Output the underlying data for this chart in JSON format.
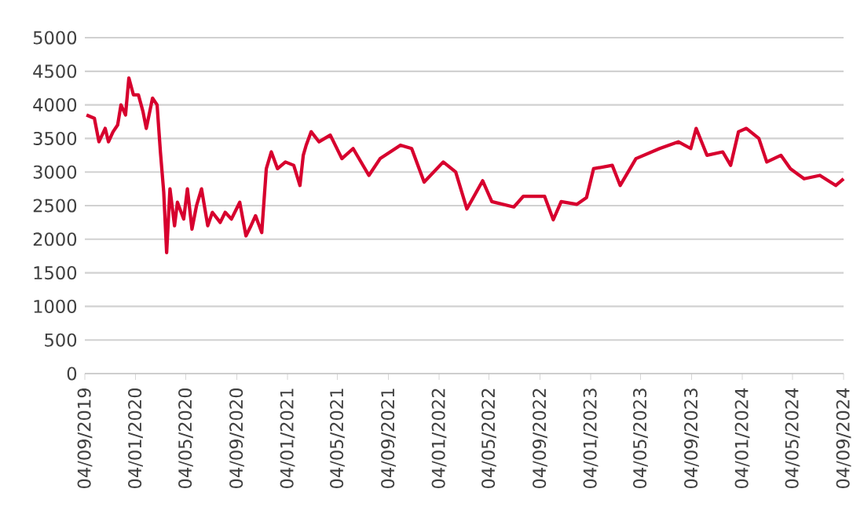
{
  "chart_data": {
    "type": "line",
    "x": [
      "2019-09-08",
      "2019-09-27",
      "2019-10-08",
      "2019-10-23",
      "2019-10-31",
      "2019-11-11",
      "2019-11-22",
      "2019-11-30",
      "2019-12-11",
      "2019-12-19",
      "2019-12-30",
      "2020-01-11",
      "2020-01-22",
      "2020-01-30",
      "2020-02-14",
      "2020-02-25",
      "2020-03-04",
      "2020-03-12",
      "2020-03-19",
      "2020-03-27",
      "2020-04-07",
      "2020-04-14",
      "2020-04-29",
      "2020-05-08",
      "2020-05-19",
      "2020-05-30",
      "2020-06-11",
      "2020-06-26",
      "2020-07-07",
      "2020-07-26",
      "2020-08-07",
      "2020-08-22",
      "2020-09-11",
      "2020-09-26",
      "2020-10-08",
      "2020-10-19",
      "2020-11-03",
      "2020-11-14",
      "2020-11-26",
      "2020-12-11",
      "2020-12-30",
      "2021-01-19",
      "2021-02-03",
      "2021-02-11",
      "2021-02-18",
      "2021-03-02",
      "2021-03-21",
      "2021-04-17",
      "2021-05-15",
      "2021-06-11",
      "2021-07-19",
      "2021-08-15",
      "2021-10-03",
      "2021-10-30",
      "2021-11-29",
      "2022-01-14",
      "2022-02-13",
      "2022-03-12",
      "2022-04-19",
      "2022-05-11",
      "2022-07-03",
      "2022-07-26",
      "2022-09-15",
      "2022-10-06",
      "2022-10-25",
      "2022-12-02",
      "2022-12-25",
      "2023-01-11",
      "2023-02-25",
      "2023-03-16",
      "2023-04-23",
      "2023-06-19",
      "2023-08-03",
      "2023-09-02",
      "2023-09-15",
      "2023-10-11",
      "2023-11-18",
      "2023-12-07",
      "2023-12-26",
      "2024-01-14",
      "2024-02-13",
      "2024-03-03",
      "2024-04-06",
      "2024-04-29",
      "2024-06-01",
      "2024-07-09",
      "2024-08-16",
      "2024-09-04"
    ],
    "series": [
      {
        "color": "#d7002e",
        "values": [
          3850,
          3800,
          3450,
          3650,
          3450,
          3600,
          3700,
          4000,
          3850,
          4400,
          4150,
          4150,
          3900,
          3650,
          4100,
          4000,
          3300,
          2700,
          1800,
          2750,
          2200,
          2550,
          2300,
          2750,
          2150,
          2500,
          2750,
          2200,
          2400,
          2250,
          2400,
          2300,
          2550,
          2050,
          2200,
          2350,
          2100,
          3050,
          3300,
          3050,
          3150,
          3100,
          2800,
          3250,
          3400,
          3600,
          3450,
          3550,
          3200,
          3350,
          2950,
          3200,
          3400,
          3350,
          2850,
          3150,
          3000,
          2450,
          2870,
          2560,
          2480,
          2640,
          2640,
          2290,
          2560,
          2520,
          2620,
          3050,
          3100,
          2800,
          3200,
          3350,
          3450,
          3350,
          3650,
          3250,
          3300,
          3100,
          3600,
          3650,
          3500,
          3150,
          3250,
          3050,
          2900,
          2950,
          2800,
          2900
        ]
      }
    ],
    "xlim": [
      "2019-09-04",
      "2024-09-04"
    ],
    "xticks": [
      {
        "value": "2019-09-04",
        "label": "04/09/2019"
      },
      {
        "value": "2020-01-04",
        "label": "04/01/2020"
      },
      {
        "value": "2020-05-04",
        "label": "04/05/2020"
      },
      {
        "value": "2020-09-04",
        "label": "04/09/2020"
      },
      {
        "value": "2021-01-04",
        "label": "04/01/2021"
      },
      {
        "value": "2021-05-04",
        "label": "04/05/2021"
      },
      {
        "value": "2021-09-04",
        "label": "04/09/2021"
      },
      {
        "value": "2022-01-04",
        "label": "04/01/2022"
      },
      {
        "value": "2022-05-04",
        "label": "04/05/2022"
      },
      {
        "value": "2022-09-04",
        "label": "04/09/2022"
      },
      {
        "value": "2023-01-04",
        "label": "04/01/2023"
      },
      {
        "value": "2023-05-04",
        "label": "04/05/2023"
      },
      {
        "value": "2023-09-04",
        "label": "04/09/2023"
      },
      {
        "value": "2024-01-04",
        "label": "04/01/2024"
      },
      {
        "value": "2024-05-04",
        "label": "04/05/2024"
      },
      {
        "value": "2024-09-04",
        "label": "04/09/2024"
      }
    ],
    "ylim": [
      0,
      5000
    ],
    "yticks": [
      0,
      500,
      1000,
      1500,
      2000,
      2500,
      3000,
      3500,
      4000,
      4500,
      5000
    ],
    "grid": "y",
    "legend": false,
    "marker": "none",
    "line_style": "solid"
  }
}
